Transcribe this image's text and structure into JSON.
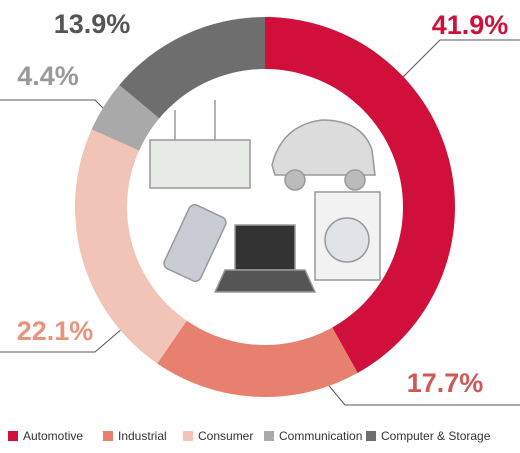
{
  "chart_data": {
    "type": "pie",
    "categories": [
      "Automotive",
      "Industrial",
      "Consumer",
      "Communication",
      "Computer & Storage"
    ],
    "values": [
      41.9,
      17.7,
      22.1,
      4.4,
      13.9
    ],
    "value_labels": [
      "41.9%",
      "17.7%",
      "22.1%",
      "4.4%",
      "13.9%"
    ],
    "colors": [
      "#d0103a",
      "#e8806f",
      "#f2c4b8",
      "#a9a9a9",
      "#6e6e6e"
    ]
  }
}
